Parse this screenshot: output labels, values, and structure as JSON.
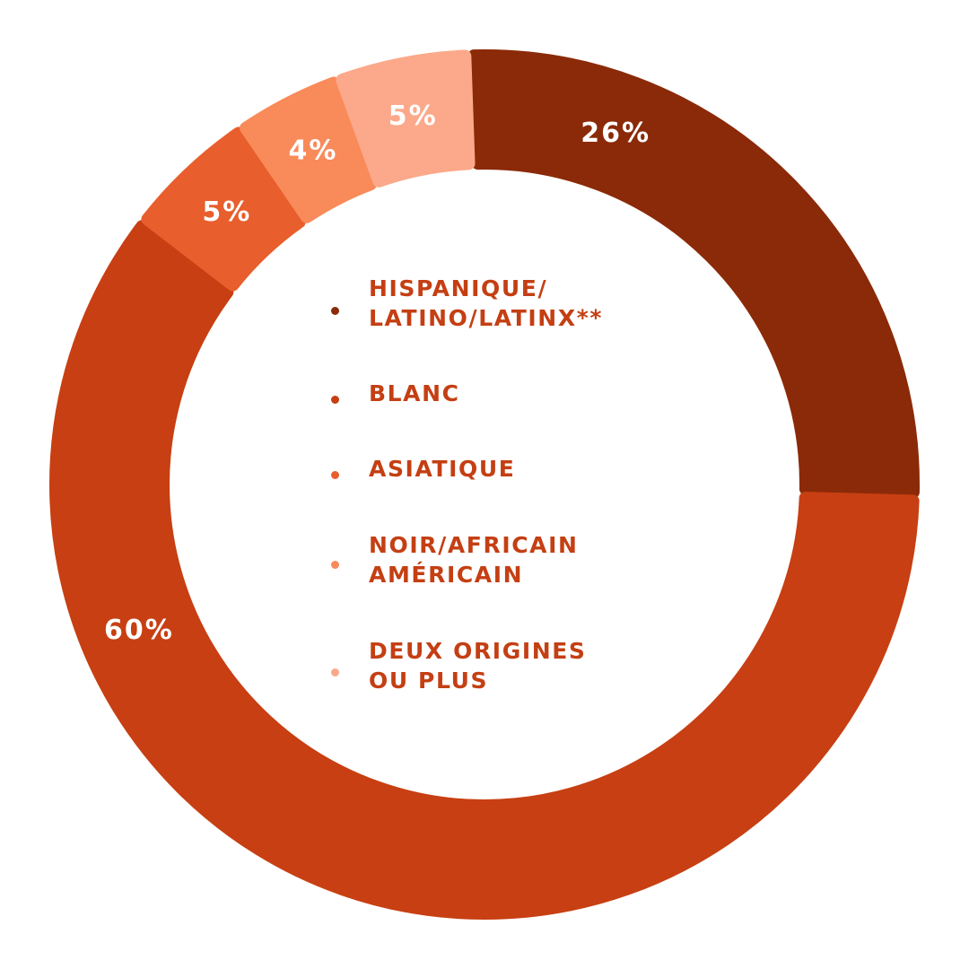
{
  "chart_data": {
    "type": "pie",
    "categories": [
      "HISPANIQUE/\nLATINO/LATINX**",
      "BLANC",
      "ASIATIQUE",
      "NOIR/AFRICAIN\nAMÉRICAIN",
      "DEUX ORIGINES\nOU PLUS"
    ],
    "values": [
      26,
      60,
      5,
      4,
      5
    ],
    "value_labels": [
      "26%",
      "60%",
      "5%",
      "4%",
      "5%"
    ],
    "colors": [
      "#8b2a08",
      "#c73f12",
      "#e85e2c",
      "#f98a5a",
      "#fba98a"
    ],
    "legend_placement": "center"
  }
}
